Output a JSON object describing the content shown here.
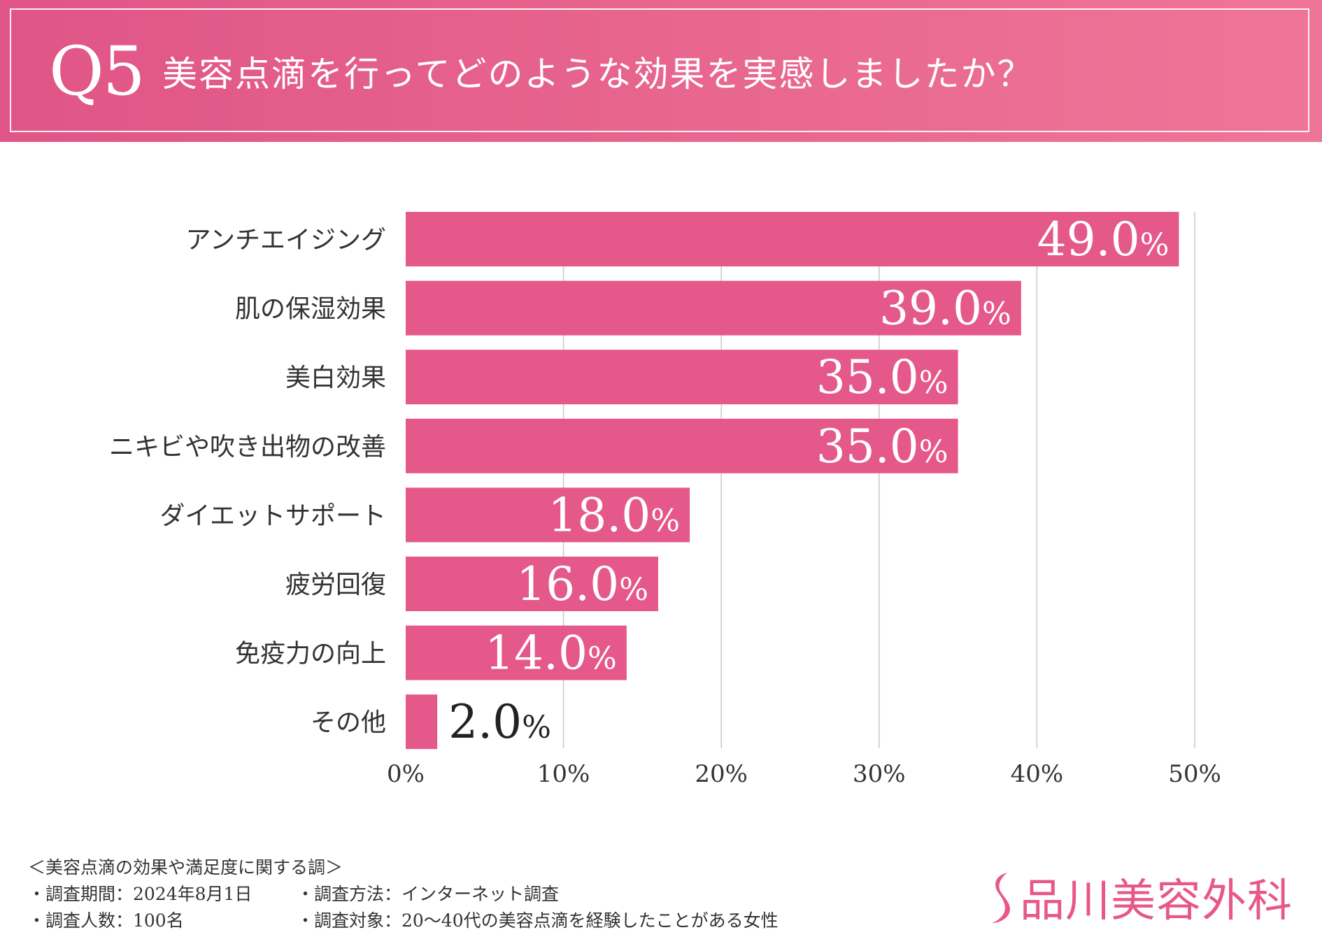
{
  "header": {
    "q_number": "Q5",
    "question": "美容点滴を行ってどのような効果を実感しましたか？"
  },
  "colors": {
    "bar": "#e5588a",
    "header_start": "#e05586",
    "header_end": "#ef7598",
    "grid": "#c8c8c8",
    "logo": "#e8578a"
  },
  "chart_data": {
    "type": "bar",
    "orientation": "horizontal",
    "title": "美容点滴を行ってどのような効果を実感しましたか？",
    "categories": [
      "アンチエイジング",
      "肌の保湿効果",
      "美白効果",
      "ニキビや吹き出物の改善",
      "ダイエットサポート",
      "疲労回復",
      "免疫力の向上",
      "その他"
    ],
    "values": [
      49.0,
      39.0,
      35.0,
      35.0,
      18.0,
      16.0,
      14.0,
      2.0
    ],
    "value_labels": [
      "49.0",
      "39.0",
      "35.0",
      "35.0",
      "18.0",
      "16.0",
      "14.0",
      "2.0"
    ],
    "unit": "%",
    "xlim": [
      0,
      50
    ],
    "ticks": [
      0,
      10,
      20,
      30,
      40,
      50
    ],
    "tick_labels": [
      "0%",
      "10%",
      "20%",
      "30%",
      "40%",
      "50%"
    ],
    "grid": true,
    "xlabel": "",
    "ylabel": ""
  },
  "footer": {
    "survey_title": "＜美容点滴の効果や満足度に関する調＞",
    "period": "・調査期間：2024年8月1日",
    "count": "・調査人数：100名",
    "method": "・調査方法：インターネット調査",
    "target": "・調査対象：20〜40代の美容点滴を経験したことがある女性"
  },
  "logo": {
    "text": "品川美容外科",
    "mark": "s-logo-icon"
  }
}
